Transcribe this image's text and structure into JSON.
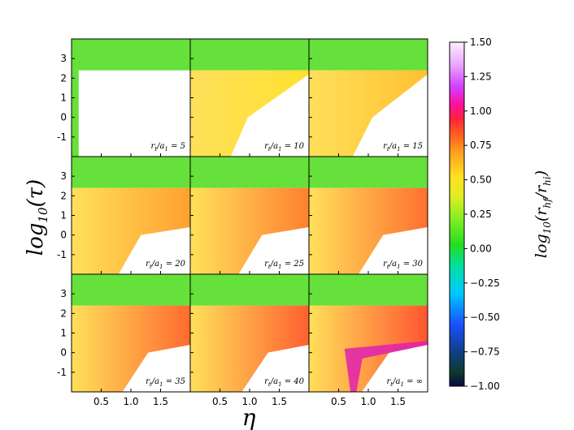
{
  "chart_data": {
    "type": "heatmap",
    "layout": "3x3 small multiples",
    "xlabel": "η",
    "ylabel": "log10(τ)",
    "xlim": [
      0.0,
      2.0
    ],
    "ylim": [
      -2.0,
      4.0
    ],
    "xticks": [
      0.5,
      1.0,
      1.5
    ],
    "xtick_labels": [
      "0.5",
      "1.0",
      "1.5"
    ],
    "yticks": [
      -1,
      0,
      1,
      2,
      3
    ],
    "ytick_labels": [
      "-1",
      "0",
      "1",
      "2",
      "3"
    ],
    "colorbar": {
      "label": "log10(rhf/rhi)",
      "range": [
        -1.0,
        1.5
      ],
      "ticks": [
        1.5,
        1.25,
        1.0,
        0.75,
        0.5,
        0.25,
        0.0,
        -0.25,
        -0.5,
        -0.75,
        -1.0
      ],
      "tick_labels": [
        "1.50",
        "1.25",
        "1.00",
        "0.75",
        "0.50",
        "0.25",
        "0.00",
        "−0.25",
        "−0.50",
        "−0.75",
        "−1.00"
      ],
      "colormap": "gist_ncar-like"
    },
    "panels": [
      {
        "label": "rt/a1 = 5",
        "mathvar": "5"
      },
      {
        "label": "rt/a1 = 10",
        "mathvar": "10"
      },
      {
        "label": "rt/a1 = 15",
        "mathvar": "15"
      },
      {
        "label": "rt/a1 = 20",
        "mathvar": "20"
      },
      {
        "label": "rt/a1 = 25",
        "mathvar": "25"
      },
      {
        "label": "rt/a1 = 30",
        "mathvar": "30"
      },
      {
        "label": "rt/a1 = 35",
        "mathvar": "35"
      },
      {
        "label": "rt/a1 = 40",
        "mathvar": "40"
      },
      {
        "label": "rt/a1 = ∞",
        "mathvar": "∞"
      }
    ]
  }
}
